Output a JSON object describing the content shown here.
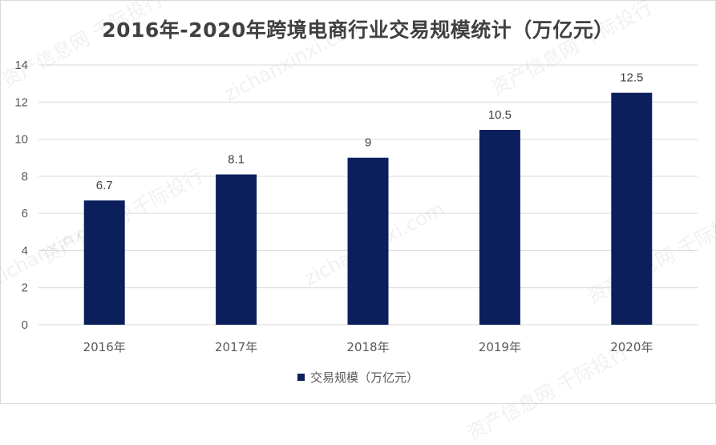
{
  "chart_data": {
    "type": "bar",
    "title": "2016年-2020年跨境电商行业交易规模统计（万亿元）",
    "categories": [
      "2016年",
      "2017年",
      "2018年",
      "2019年",
      "2020年"
    ],
    "series": [
      {
        "name": "交易规模（万亿元）",
        "values": [
          6.7,
          8.1,
          9,
          10.5,
          12.5
        ]
      }
    ],
    "data_labels": [
      "6.7",
      "8.1",
      "9",
      "10.5",
      "12.5"
    ],
    "ylim": [
      0,
      14
    ],
    "yticks": [
      "0",
      "2",
      "4",
      "6",
      "8",
      "10",
      "12",
      "14"
    ],
    "grid": true,
    "legend_position": "bottom",
    "bar_color": "#0b1f5c",
    "grid_color": "#d9d9d9"
  },
  "watermark": {
    "lines": [
      "资产信息网 千际投行",
      "zichanxinxi.com"
    ]
  }
}
